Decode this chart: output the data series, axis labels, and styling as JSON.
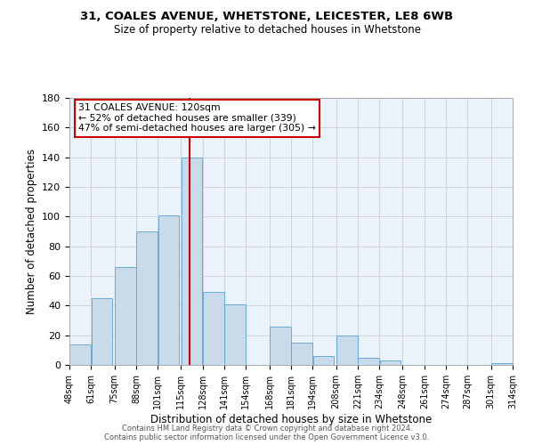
{
  "title1": "31, COALES AVENUE, WHETSTONE, LEICESTER, LE8 6WB",
  "title2": "Size of property relative to detached houses in Whetstone",
  "xlabel": "Distribution of detached houses by size in Whetstone",
  "ylabel": "Number of detached properties",
  "bar_left_edges": [
    48,
    61,
    75,
    88,
    101,
    115,
    128,
    141,
    154,
    168,
    181,
    194,
    208,
    221,
    234,
    248,
    261,
    274,
    287,
    301
  ],
  "bar_heights": [
    14,
    45,
    66,
    90,
    101,
    140,
    49,
    41,
    0,
    26,
    15,
    6,
    20,
    5,
    3,
    0,
    0,
    0,
    0,
    1
  ],
  "bin_width": 13,
  "tick_labels": [
    "48sqm",
    "61sqm",
    "75sqm",
    "88sqm",
    "101sqm",
    "115sqm",
    "128sqm",
    "141sqm",
    "154sqm",
    "168sqm",
    "181sqm",
    "194sqm",
    "208sqm",
    "221sqm",
    "234sqm",
    "248sqm",
    "261sqm",
    "274sqm",
    "287sqm",
    "301sqm",
    "314sqm"
  ],
  "bar_color": "#c9daea",
  "bar_edge_color": "#6aabd2",
  "grid_color": "#cccccc",
  "background_color": "#eaf3fb",
  "vline_x": 120,
  "vline_color": "#cc0000",
  "annotation_line1": "31 COALES AVENUE: 120sqm",
  "annotation_line2": "← 52% of detached houses are smaller (339)",
  "annotation_line3": "47% of semi-detached houses are larger (305) →",
  "annotation_box_color": "#ffffff",
  "annotation_edge_color": "#cc0000",
  "ylim": [
    0,
    180
  ],
  "yticks": [
    0,
    20,
    40,
    60,
    80,
    100,
    120,
    140,
    160,
    180
  ],
  "footer1": "Contains HM Land Registry data © Crown copyright and database right 2024.",
  "footer2": "Contains public sector information licensed under the Open Government Licence v3.0."
}
